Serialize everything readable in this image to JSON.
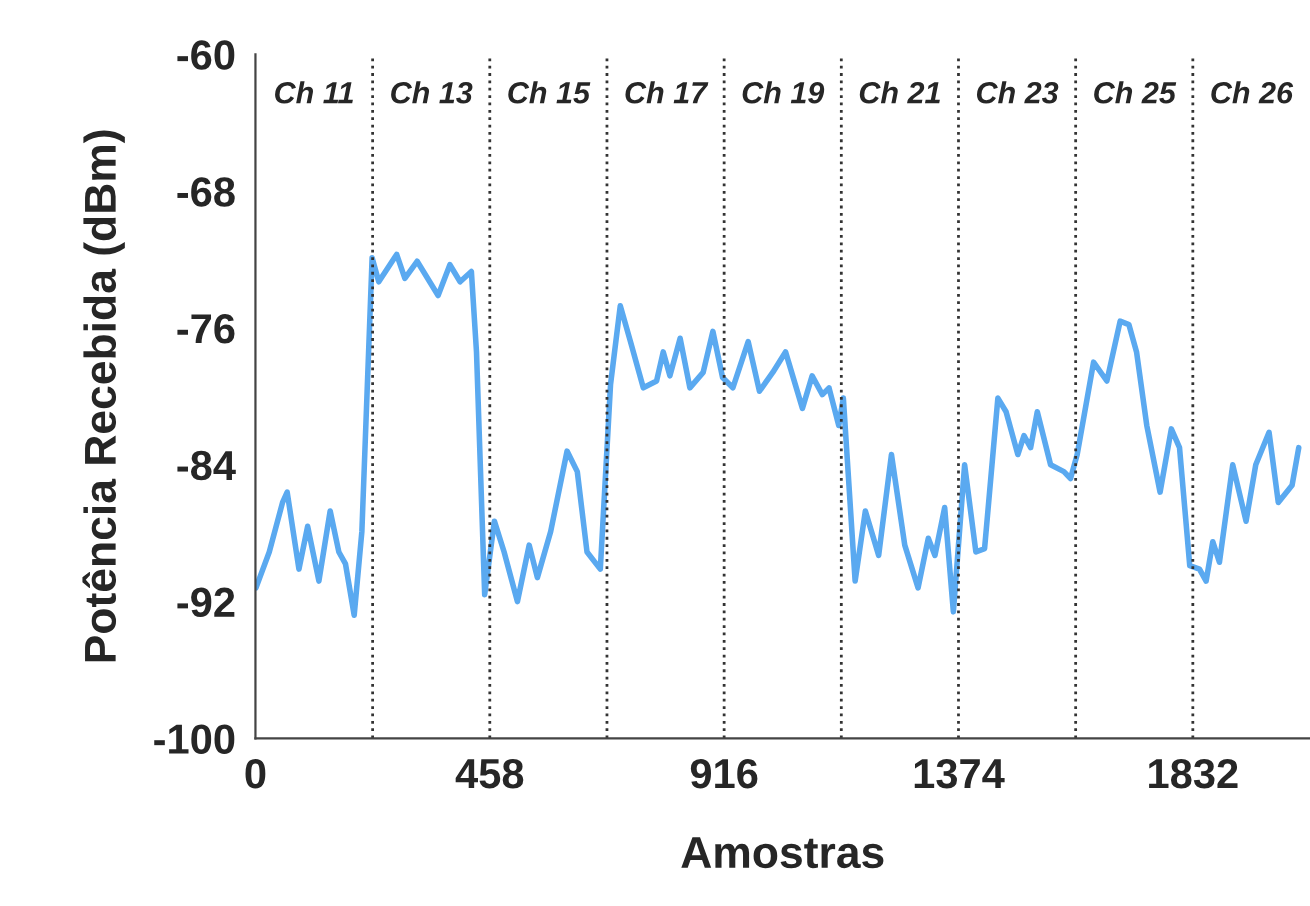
{
  "chart_data": {
    "type": "line",
    "xlabel": "Amostras",
    "ylabel": "Potência Recebida (dBm)",
    "xlim": [
      0,
      2061
    ],
    "ylim": [
      -100,
      -60
    ],
    "xticks": [
      0,
      458,
      916,
      1374,
      1832
    ],
    "yticks": [
      -100,
      -92,
      -84,
      -76,
      -68,
      -60
    ],
    "grid": false,
    "legend": false,
    "line_style": "solid",
    "series": [
      {
        "color": "#5aa9f0",
        "x": [
          1,
          27,
          53,
          62,
          85,
          102,
          124,
          146,
          163,
          176,
          193,
          208,
          228,
          241,
          276,
          292,
          316,
          357,
          380,
          400,
          422,
          432,
          448,
          467,
          486,
          512,
          535,
          551,
          577,
          609,
          629,
          648,
          674,
          694,
          713,
          733,
          758,
          784,
          797,
          810,
          830,
          849,
          875,
          894,
          913,
          933,
          963,
          985,
          1011,
          1036,
          1069,
          1088,
          1108,
          1121,
          1140,
          1149,
          1172,
          1192,
          1218,
          1243,
          1269,
          1295,
          1315,
          1328,
          1347,
          1364,
          1386,
          1408,
          1425,
          1451,
          1467,
          1490,
          1502,
          1515,
          1528,
          1554,
          1580,
          1593,
          1606,
          1638,
          1664,
          1690,
          1707,
          1722,
          1742,
          1768,
          1790,
          1806,
          1826,
          1845,
          1858,
          1871,
          1884,
          1910,
          1936,
          1955,
          1981,
          1999,
          2026,
          2039
        ],
        "values": [
          -91.2,
          -89.1,
          -86.2,
          -85.6,
          -90.1,
          -87.6,
          -90.8,
          -86.7,
          -89.1,
          -89.8,
          -92.8,
          -87.9,
          -71.9,
          -73.3,
          -71.7,
          -73.1,
          -72.1,
          -74.1,
          -72.3,
          -73.3,
          -72.7,
          -77.4,
          -91.6,
          -87.3,
          -89.1,
          -92.0,
          -88.7,
          -90.6,
          -87.9,
          -83.2,
          -84.4,
          -89.1,
          -90.1,
          -79.3,
          -74.7,
          -76.8,
          -79.5,
          -79.1,
          -77.4,
          -78.8,
          -76.6,
          -79.5,
          -78.6,
          -76.2,
          -78.9,
          -79.5,
          -76.8,
          -79.7,
          -78.6,
          -77.4,
          -80.7,
          -78.8,
          -79.9,
          -79.5,
          -81.7,
          -80.1,
          -90.8,
          -86.7,
          -89.3,
          -83.4,
          -88.7,
          -91.2,
          -88.3,
          -89.3,
          -86.5,
          -92.6,
          -84.0,
          -89.1,
          -88.9,
          -80.1,
          -80.9,
          -83.4,
          -82.3,
          -83.0,
          -80.9,
          -84.0,
          -84.4,
          -84.8,
          -83.4,
          -78.0,
          -79.1,
          -75.6,
          -75.8,
          -77.4,
          -81.7,
          -85.6,
          -81.9,
          -83.0,
          -89.9,
          -90.1,
          -90.8,
          -88.5,
          -89.7,
          -84.0,
          -87.3,
          -84.0,
          -82.1,
          -86.2,
          -85.2,
          -83.0
        ]
      }
    ],
    "ref_lines": [
      {
        "axis": "x",
        "value": 229,
        "color": "#333333",
        "line_style": "dotted"
      },
      {
        "axis": "x",
        "value": 458,
        "color": "#333333",
        "line_style": "dotted"
      },
      {
        "axis": "x",
        "value": 687,
        "color": "#333333",
        "line_style": "dotted"
      },
      {
        "axis": "x",
        "value": 916,
        "color": "#333333",
        "line_style": "dotted"
      },
      {
        "axis": "x",
        "value": 1145,
        "color": "#333333",
        "line_style": "dotted"
      },
      {
        "axis": "x",
        "value": 1374,
        "color": "#333333",
        "line_style": "dotted"
      },
      {
        "axis": "x",
        "value": 1603,
        "color": "#333333",
        "line_style": "dotted"
      },
      {
        "axis": "x",
        "value": 1832,
        "color": "#333333",
        "line_style": "dotted"
      }
    ],
    "annotations": [
      "Ch 11",
      "Ch 13",
      "Ch 15",
      "Ch 17",
      "Ch 19",
      "Ch 21",
      "Ch 23",
      "Ch 25",
      "Ch 26"
    ]
  }
}
